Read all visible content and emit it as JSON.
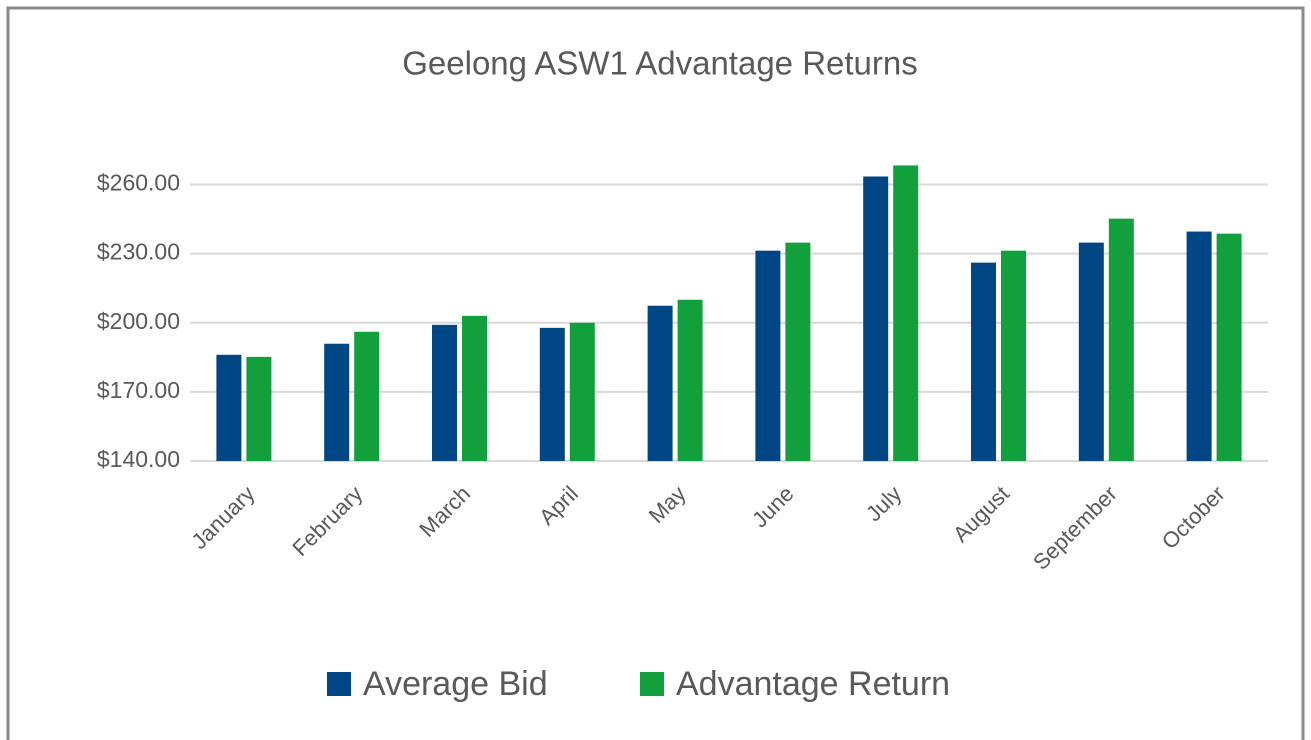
{
  "chart_data": {
    "type": "bar",
    "title": "Geelong ASW1 Advantage Returns",
    "categories": [
      "January",
      "February",
      "March",
      "April",
      "May",
      "June",
      "July",
      "August",
      "September",
      "October"
    ],
    "series": [
      {
        "name": "Average Bid",
        "color": "#004684",
        "values": [
          186.1,
          190.9,
          199.1,
          197.8,
          207.4,
          231.3,
          263.5,
          226.1,
          234.8,
          239.6
        ]
      },
      {
        "name": "Advantage Return",
        "color": "#12a03c",
        "values": [
          185.2,
          196.1,
          203.0,
          200.0,
          210.0,
          234.8,
          268.3,
          231.3,
          245.2,
          238.7
        ]
      }
    ],
    "ylim": [
      140,
      275
    ],
    "yticks": [
      {
        "value": 140,
        "label": "$140.00"
      },
      {
        "value": 170,
        "label": "$170.00"
      },
      {
        "value": 200,
        "label": "$200.00"
      },
      {
        "value": 230,
        "label": "$230.00"
      },
      {
        "value": 260,
        "label": "$260.00"
      }
    ],
    "grid": true,
    "legend": "bottom"
  }
}
